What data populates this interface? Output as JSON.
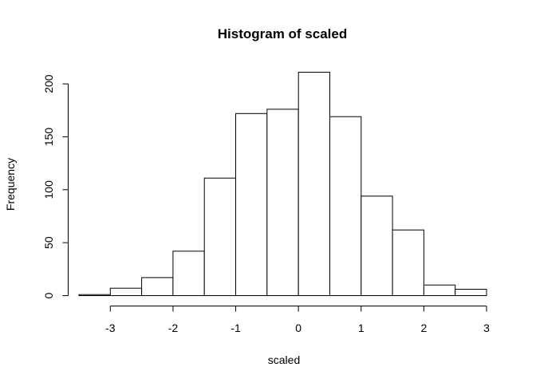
{
  "chart_data": {
    "type": "bar",
    "subtype": "histogram",
    "title": "Histogram of scaled",
    "xlabel": "scaled",
    "ylabel": "Frequency",
    "bins": [
      {
        "start": -3.5,
        "end": -3.0,
        "count": 1
      },
      {
        "start": -3.0,
        "end": -2.5,
        "count": 7
      },
      {
        "start": -2.5,
        "end": -2.0,
        "count": 17
      },
      {
        "start": -2.0,
        "end": -1.5,
        "count": 42
      },
      {
        "start": -1.5,
        "end": -1.0,
        "count": 111
      },
      {
        "start": -1.0,
        "end": -0.5,
        "count": 172
      },
      {
        "start": -0.5,
        "end": 0.0,
        "count": 176
      },
      {
        "start": 0.0,
        "end": 0.5,
        "count": 211
      },
      {
        "start": 0.5,
        "end": 1.0,
        "count": 169
      },
      {
        "start": 1.0,
        "end": 1.5,
        "count": 94
      },
      {
        "start": 1.5,
        "end": 2.0,
        "count": 62
      },
      {
        "start": 2.0,
        "end": 2.5,
        "count": 10
      },
      {
        "start": 2.5,
        "end": 3.0,
        "count": 6
      }
    ],
    "xlim": [
      -3.5,
      3.0
    ],
    "ylim": [
      0,
      211
    ],
    "x_ticks": [
      -3,
      -2,
      -1,
      0,
      1,
      2,
      3
    ],
    "x_tick_labels": [
      "-3",
      "-2",
      "-1",
      "0",
      "1",
      "2",
      "3"
    ],
    "y_ticks": [
      0,
      50,
      100,
      150,
      200
    ],
    "y_tick_labels": [
      "0",
      "50",
      "100",
      "150",
      "200"
    ],
    "grid": false,
    "legend": "none"
  }
}
